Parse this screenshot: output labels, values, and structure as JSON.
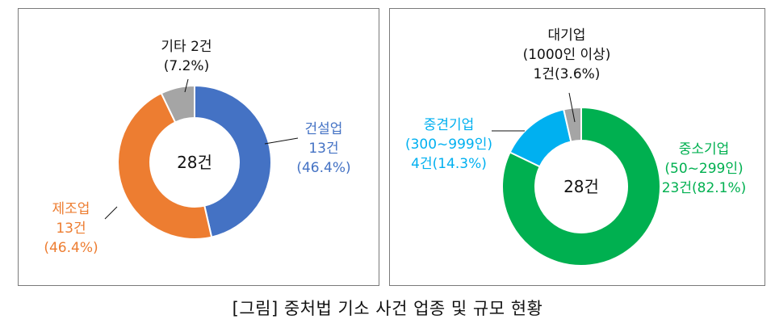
{
  "chart_data": [
    {
      "type": "pie",
      "variant": "donut",
      "center_label": "28건",
      "slices": [
        {
          "label_lines": [
            "건설업",
            "13건",
            "(46.4%)"
          ],
          "value": 13,
          "percent": 46.4,
          "color": "#4472C4"
        },
        {
          "label_lines": [
            "제조업",
            "13건",
            "(46.4%)"
          ],
          "value": 13,
          "percent": 46.4,
          "color": "#ED7D31"
        },
        {
          "label_lines": [
            "기타 2건",
            "(7.2%)"
          ],
          "value": 2,
          "percent": 7.2,
          "color": "#A5A5A5"
        }
      ]
    },
    {
      "type": "pie",
      "variant": "donut",
      "center_label": "28건",
      "slices": [
        {
          "label_lines": [
            "중소기업",
            "(50~299인)",
            "23건(82.1%)"
          ],
          "value": 23,
          "percent": 82.1,
          "color": "#00B050"
        },
        {
          "label_lines": [
            "중견기업",
            "(300~999인)",
            "4건(14.3%)"
          ],
          "value": 4,
          "percent": 14.3,
          "color": "#00B0F0"
        },
        {
          "label_lines": [
            "대기업",
            "(1000인 이상)",
            "1건(3.6%)"
          ],
          "value": 1,
          "percent": 3.6,
          "color": "#A5A5A5"
        }
      ]
    }
  ],
  "caption": "[그림]  중처법 기소 사건 업종 및 규모 현황"
}
